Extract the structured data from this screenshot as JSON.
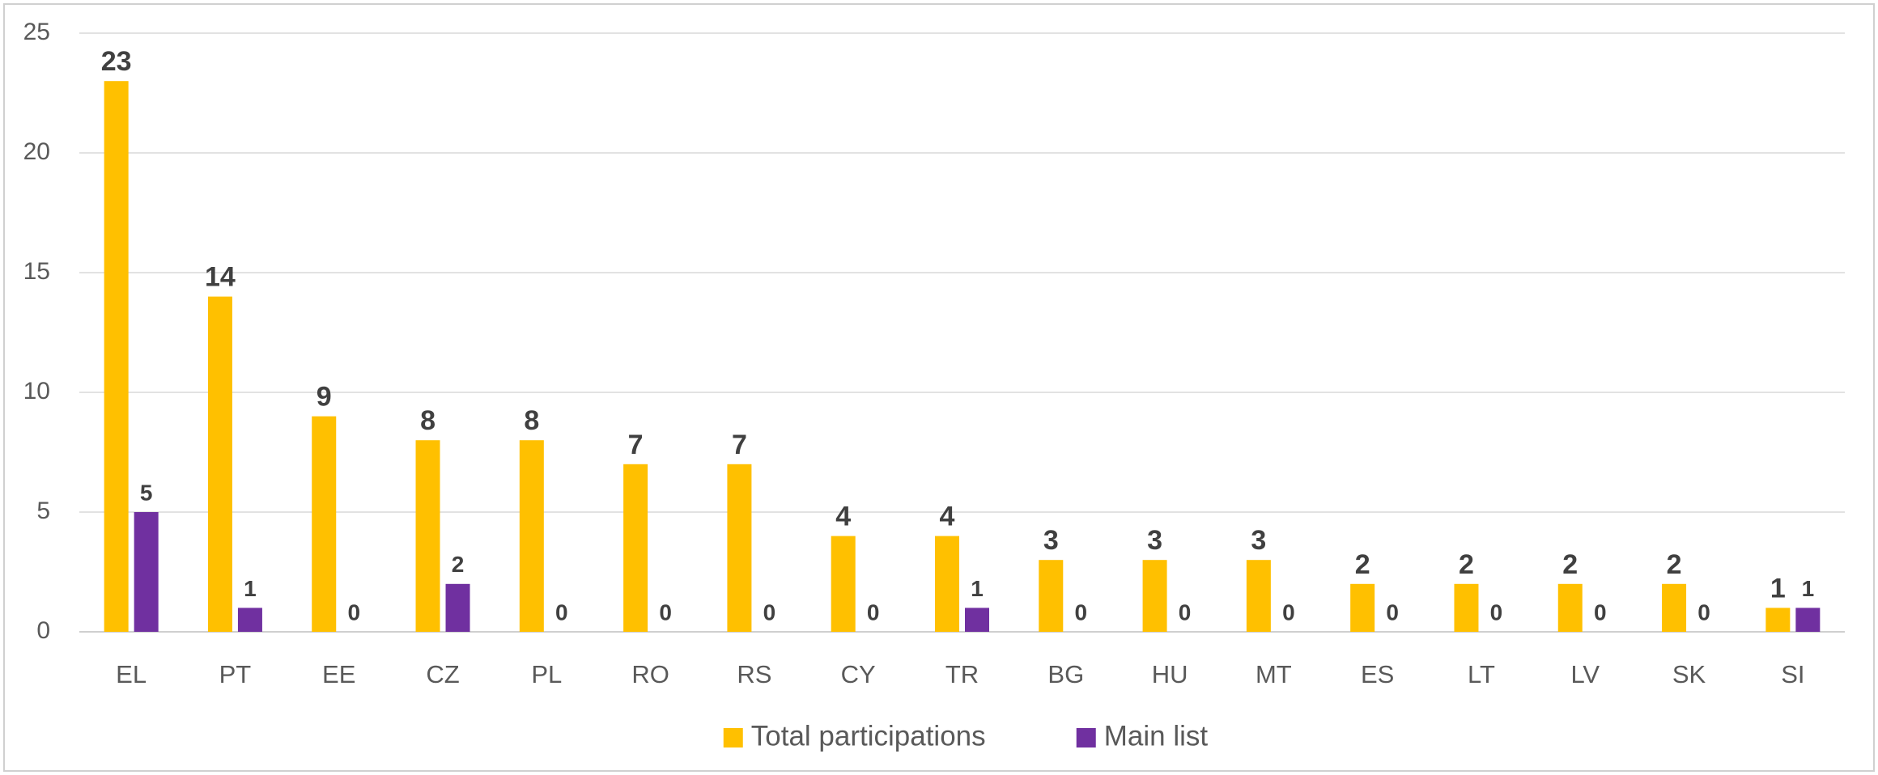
{
  "chart_data": {
    "type": "bar",
    "categories": [
      "EL",
      "PT",
      "EE",
      "CZ",
      "PL",
      "RO",
      "RS",
      "CY",
      "TR",
      "BG",
      "HU",
      "MT",
      "ES",
      "LT",
      "LV",
      "SK",
      "SI"
    ],
    "series": [
      {
        "name": "Total participations",
        "color": "#ffc000",
        "values": [
          23,
          14,
          9,
          8,
          8,
          7,
          7,
          4,
          4,
          3,
          3,
          3,
          2,
          2,
          2,
          2,
          1
        ]
      },
      {
        "name": "Main list",
        "color": "#7030a0",
        "values": [
          5,
          1,
          0,
          2,
          0,
          0,
          0,
          0,
          1,
          0,
          0,
          0,
          0,
          0,
          0,
          0,
          1
        ]
      }
    ],
    "ylim": [
      0,
      25
    ],
    "yticks": [
      0,
      5,
      10,
      15,
      20,
      25
    ],
    "grid": true,
    "legend": "bottom"
  }
}
